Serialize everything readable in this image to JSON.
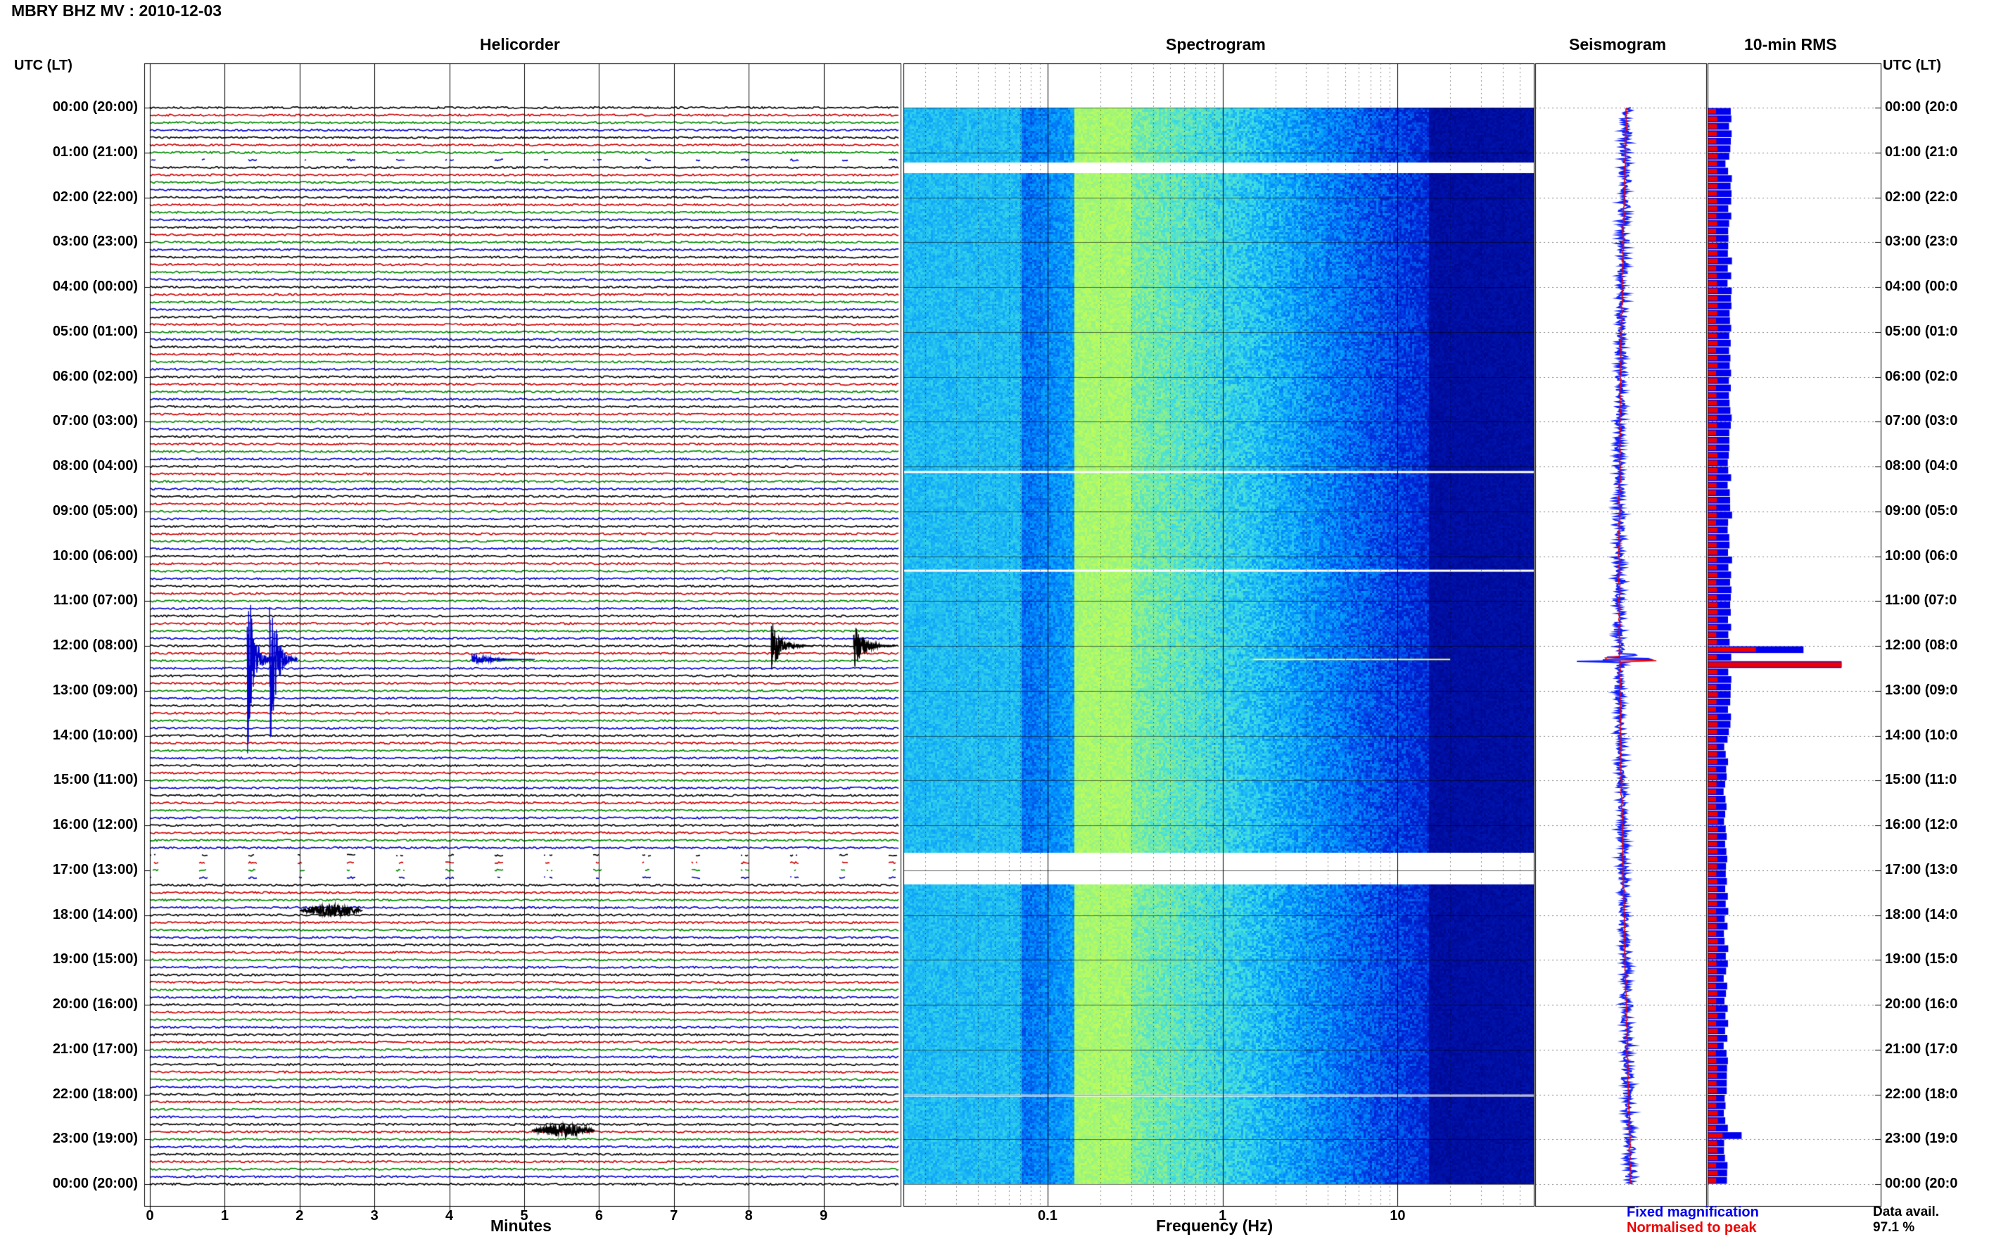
{
  "title": "MBRY BHZ MV : 2010-12-03",
  "panels": {
    "helicorder": "Helicorder",
    "spectrogram": "Spectrogram",
    "seismogram": "Seismogram",
    "rms": "10-min RMS"
  },
  "utc_header": "UTC (LT)",
  "time_labels": [
    "00:00 (20:00)",
    "01:00 (21:00)",
    "02:00 (22:00)",
    "03:00 (23:00)",
    "04:00 (00:00)",
    "05:00 (01:00)",
    "06:00 (02:00)",
    "07:00 (03:00)",
    "08:00 (04:00)",
    "09:00 (05:00)",
    "10:00 (06:00)",
    "11:00 (07:00)",
    "12:00 (08:00)",
    "13:00 (09:00)",
    "14:00 (10:00)",
    "15:00 (11:00)",
    "16:00 (12:00)",
    "17:00 (13:00)",
    "18:00 (14:00)",
    "19:00 (15:00)",
    "20:00 (16:00)",
    "21:00 (17:00)",
    "22:00 (18:00)",
    "23:00 (19:00)",
    "00:00 (20:00)"
  ],
  "time_labels_right": [
    "00:00 (20:0",
    "01:00 (21:0",
    "02:00 (22:0",
    "03:00 (23:0",
    "04:00 (00:0",
    "05:00 (01:0",
    "06:00 (02:0",
    "07:00 (03:0",
    "08:00 (04:0",
    "09:00 (05:0",
    "10:00 (06:0",
    "11:00 (07:0",
    "12:00 (08:0",
    "13:00 (09:0",
    "14:00 (10:0",
    "15:00 (11:0",
    "16:00 (12:0",
    "17:00 (13:0",
    "18:00 (14:0",
    "19:00 (15:0",
    "20:00 (16:0",
    "21:00 (17:0",
    "22:00 (18:0",
    "23:00 (19:0",
    "00:00 (20:0"
  ],
  "minute_ticks": [
    "0",
    "1",
    "2",
    "3",
    "4",
    "5",
    "6",
    "7",
    "8",
    "9"
  ],
  "freq_ticks": [
    "0.1",
    "1",
    "10"
  ],
  "xlabel_helicorder": "Minutes",
  "xlabel_spectrogram": "Frequency (Hz)",
  "legend": {
    "fixed": "Fixed magnification",
    "normalised": "Normalised to peak",
    "fixed_color": "#0000ee",
    "normalised_color": "#ee0000"
  },
  "data_avail": {
    "label": "Data avail.",
    "value": "97.1 %"
  },
  "colors": {
    "trace_cycle": [
      "#000000",
      "#cc0000",
      "#008800",
      "#0000cc"
    ],
    "spectrogram_low": "#00007f",
    "spectrogram_high": "#c8ff50",
    "rms_fixed": "#0000ee",
    "rms_normalised": "#ee0000"
  },
  "chart_data": [
    {
      "type": "line",
      "panel": "Helicorder",
      "xlabel": "Minutes",
      "xlim": [
        0,
        10
      ],
      "ylabel": "UTC (LT)",
      "ylim_hours": [
        0,
        24
      ],
      "traces_per_hour": 6,
      "events": [
        {
          "hour": 12.3,
          "minute": 1.3,
          "amplitude": "large"
        },
        {
          "hour": 12.3,
          "minute": 1.6,
          "amplitude": "large"
        },
        {
          "hour": 12.3,
          "minute": 4.3,
          "amplitude": "small"
        },
        {
          "hour": 12.0,
          "minute": 8.3,
          "amplitude": "medium"
        },
        {
          "hour": 12.0,
          "minute": 9.4,
          "amplitude": "medium"
        },
        {
          "hour": 17.9,
          "minute": 2.0,
          "amplitude": "small"
        },
        {
          "hour": 22.8,
          "minute": 5.1,
          "amplitude": "small"
        }
      ],
      "data_gaps_hours": [
        [
          1.1,
          1.3
        ],
        [
          16.6,
          17.3
        ]
      ]
    },
    {
      "type": "heatmap",
      "panel": "Spectrogram",
      "xlabel": "Frequency (Hz)",
      "x_scale": "log",
      "xlim": [
        0.015,
        60
      ],
      "ylim_hours": [
        0,
        24
      ],
      "energy_peak_band_hz": [
        0.14,
        0.3
      ],
      "data_gaps_hours": [
        [
          1.2,
          1.45
        ],
        [
          16.6,
          17.3
        ]
      ]
    },
    {
      "type": "line",
      "panel": "Seismogram",
      "ylim_hours": [
        0,
        24
      ],
      "peak_hour": 12.3
    },
    {
      "type": "bar",
      "panel": "10-min RMS",
      "ylim_hours": [
        0,
        24
      ],
      "bins_per_hour": 6,
      "peaks": [
        {
          "hour": 12.0,
          "fixed": 1.0,
          "normalised": 0.5
        },
        {
          "hour": 12.3,
          "fixed": 1.4,
          "normalised": 1.4
        },
        {
          "hour": 22.8,
          "fixed": 0.35,
          "normalised": 0.15
        }
      ],
      "series": [
        {
          "name": "Fixed magnification"
        },
        {
          "name": "Normalised to peak"
        }
      ]
    }
  ]
}
